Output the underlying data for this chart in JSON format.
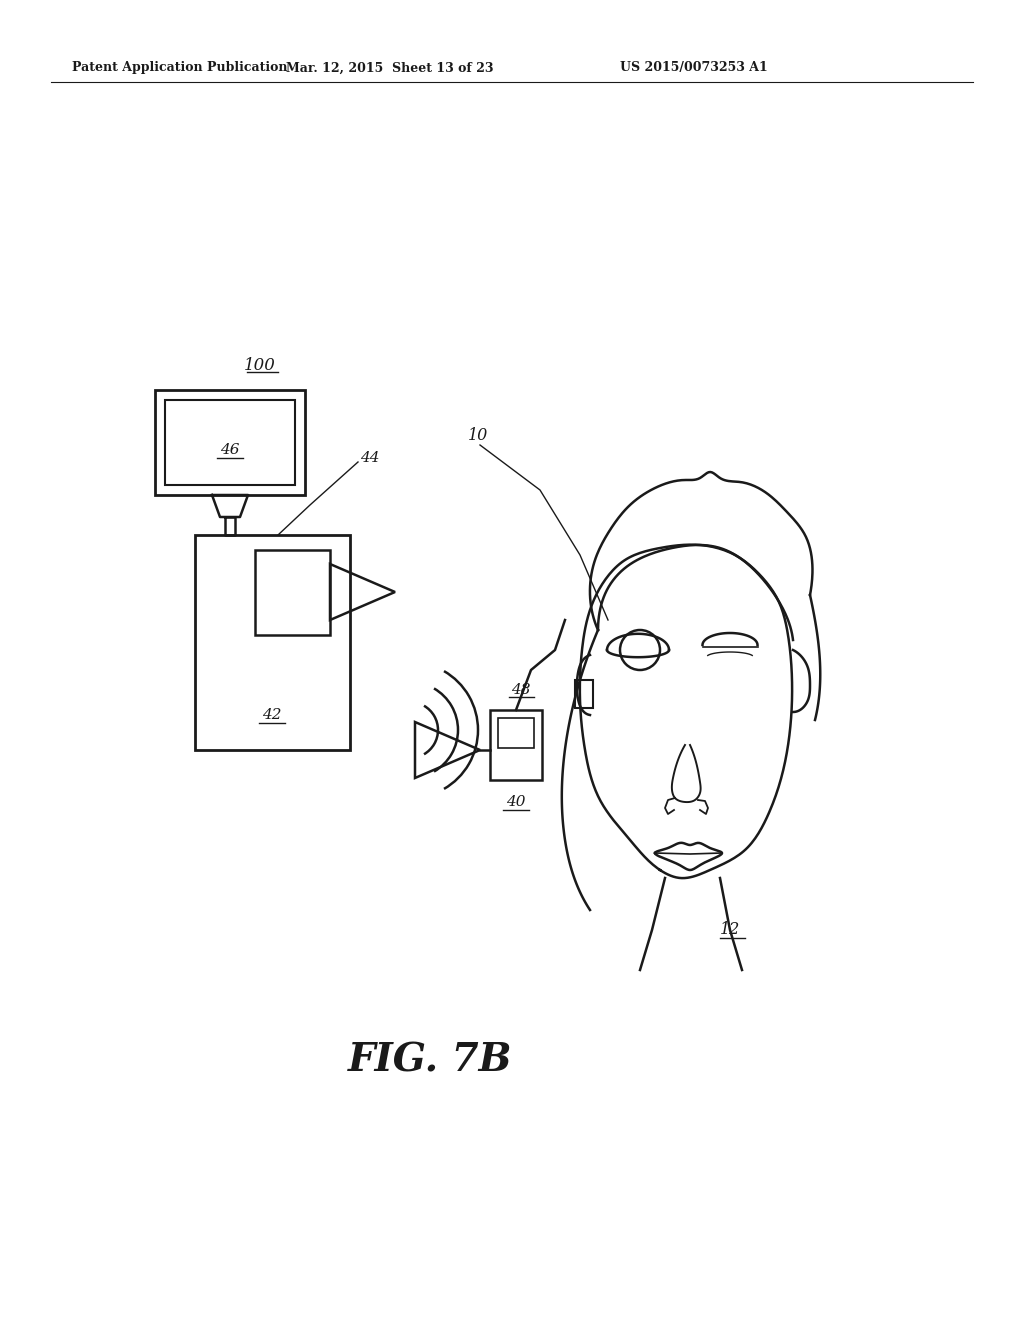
{
  "bg_color": "#ffffff",
  "line_color": "#1a1a1a",
  "header_left": "Patent Application Publication",
  "header_mid": "Mar. 12, 2015  Sheet 13 of 23",
  "header_right": "US 2015/0073253 A1",
  "figure_label": "FIG. 7B"
}
